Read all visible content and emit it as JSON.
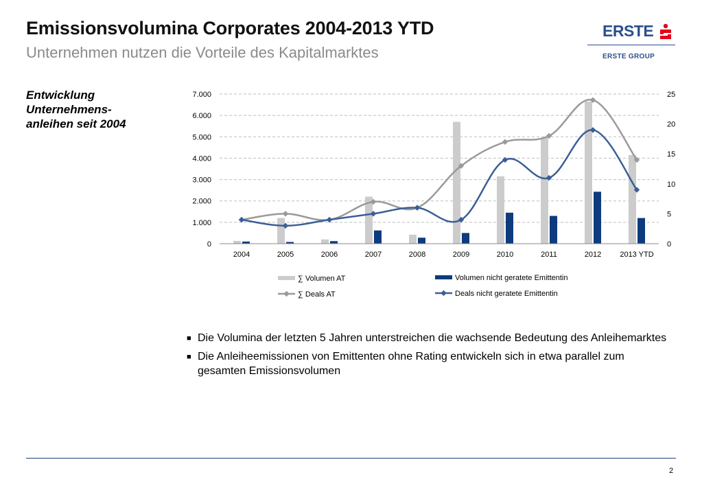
{
  "header": {
    "title": "Emissionsvolumina Corporates 2004-2013 YTD",
    "subtitle": "Unternehmen nutzen die Vorteile des Kapitalmarktes"
  },
  "logo": {
    "word": "ERSTE",
    "group": "ERSTE GROUP"
  },
  "side_caption": "Entwicklung Unternehmens-anleihen seit 2004",
  "bullets": [
    "Die Volumina der letzten 5 Jahren unterstreichen die wachsende Bedeutung des Anleihemarktes",
    "Die Anleiheemissionen von Emittenten ohne Rating entwickeln sich in etwa parallel zum gesamten Emissionsvolumen"
  ],
  "page_number": "2",
  "colors": {
    "title": "#111111",
    "subtitle": "#8a8a8a",
    "brand": "#2b4f8c",
    "gray_bar": "#cccccc",
    "navy_bar": "#0d3b7d",
    "gray_line": "#9a9a9a",
    "blue_line": "#3b5f96"
  },
  "chart_data": {
    "type": "bar",
    "categories": [
      "2004",
      "2005",
      "2006",
      "2007",
      "2008",
      "2009",
      "2010",
      "2011",
      "2012",
      "2013 YTD"
    ],
    "y_left": {
      "ylim": [
        0,
        7000
      ],
      "ticks": [
        "0",
        "1.000",
        "2.000",
        "3.000",
        "4.000",
        "5.000",
        "6.000",
        "7.000"
      ]
    },
    "y_right": {
      "ylim": [
        0,
        25
      ],
      "ticks": [
        "0",
        "5",
        "10",
        "15",
        "20",
        "25"
      ]
    },
    "grid": true,
    "legend_position": "bottom",
    "series": [
      {
        "name": "∑ Volumen  AT",
        "type": "bar",
        "axis": "left",
        "color": "#cccccc",
        "values": [
          130,
          1200,
          200,
          2200,
          420,
          5700,
          3150,
          4950,
          6650,
          4150
        ]
      },
      {
        "name": "Volumen nicht geratete Emittentin",
        "type": "bar",
        "axis": "left",
        "color": "#0d3b7d",
        "values": [
          100,
          80,
          120,
          620,
          280,
          500,
          1450,
          1300,
          2430,
          1200
        ]
      },
      {
        "name": "∑ Deals  AT",
        "type": "line",
        "axis": "right",
        "color": "#9a9a9a",
        "values": [
          4,
          5,
          4,
          7,
          6,
          13,
          17,
          18,
          24,
          14
        ]
      },
      {
        "name": "Deals nicht geratete Emittentin",
        "type": "line",
        "axis": "right",
        "color": "#3b5f96",
        "values": [
          4,
          3,
          4,
          5,
          6,
          4,
          14,
          11,
          19,
          9
        ]
      }
    ]
  }
}
